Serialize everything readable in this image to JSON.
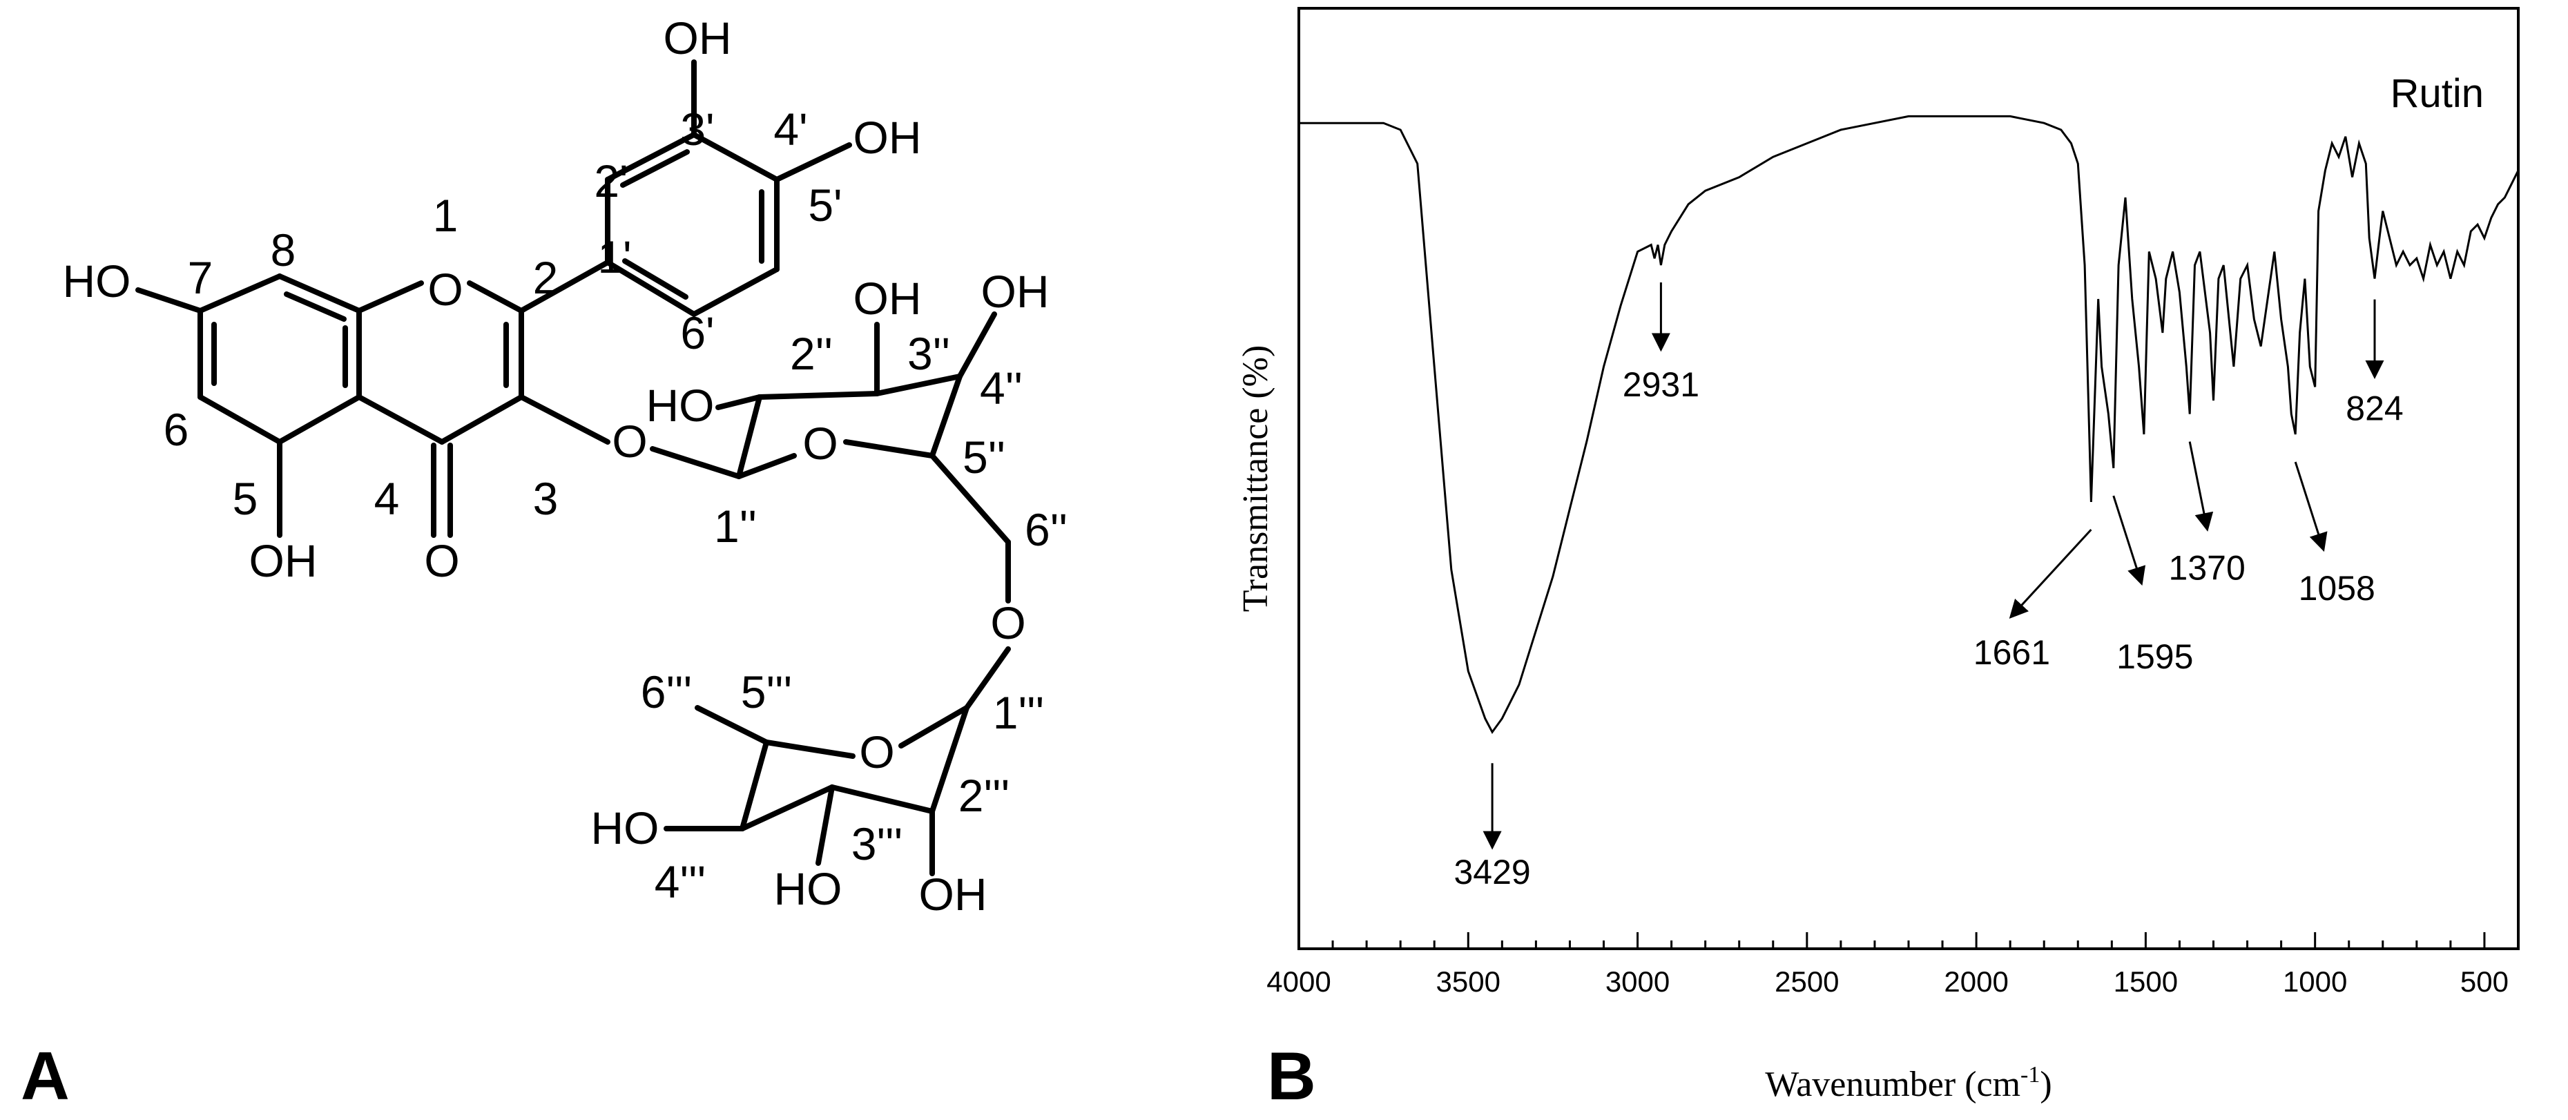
{
  "panels": {
    "a": "A",
    "b": "B"
  },
  "structure": {
    "atoms": {
      "o1": "O",
      "o4": "O",
      "oh_3p": "OH",
      "oh_4p": "OH",
      "oh_7": "HO",
      "oh_5": "OH",
      "o_3": "O",
      "o_ring1": "O",
      "o_ring2": "O",
      "o_6dd": "O",
      "oh_2dd": "HO",
      "oh_3dd": "OH",
      "oh_4dd": "OH",
      "oh_4ddd": "HO",
      "oh_3ddd": "HO",
      "oh_2ddd": "OH"
    },
    "numbering": {
      "n1": "1",
      "n2": "2",
      "n3": "3",
      "n4": "4",
      "n5": "5",
      "n6": "6",
      "n7": "7",
      "n8": "8",
      "n1p": "1'",
      "n2p": "2'",
      "n3p": "3'",
      "n4p": "4'",
      "n5p": "5'",
      "n6p": "6'",
      "n1dd": "1''",
      "n2dd": "2''",
      "n3dd": "3''",
      "n4dd": "4''",
      "n5dd": "5''",
      "n6dd": "6''",
      "n1ddd": "1'''",
      "n2ddd": "2'''",
      "n3ddd": "3'''",
      "n4ddd": "4'''",
      "n5ddd": "5'''",
      "n6ddd": "6'''"
    }
  },
  "chart_data": {
    "type": "line",
    "title": "",
    "xlabel": "Wavenumber (cm-1)",
    "xlabel_parts": {
      "main": "Wavenumber (cm",
      "sup": "-1",
      "close": ")"
    },
    "ylabel": "Transmittance (%)",
    "xlim": [
      4000,
      400
    ],
    "x_reversed": true,
    "y_tick_labels": false,
    "x_ticks": [
      "4000",
      "3500",
      "3000",
      "2500",
      "2000",
      "1500",
      "1000",
      "500"
    ],
    "legend": "none",
    "grid": false,
    "series": [
      {
        "name": "Rutin",
        "x": [
          4000,
          3850,
          3750,
          3700,
          3650,
          3600,
          3550,
          3500,
          3450,
          3429,
          3400,
          3350,
          3300,
          3250,
          3200,
          3150,
          3100,
          3050,
          3000,
          2960,
          2950,
          2940,
          2931,
          2920,
          2900,
          2850,
          2800,
          2700,
          2600,
          2500,
          2400,
          2300,
          2200,
          2100,
          2000,
          1900,
          1800,
          1750,
          1720,
          1700,
          1680,
          1661,
          1640,
          1630,
          1610,
          1595,
          1580,
          1560,
          1540,
          1520,
          1505,
          1490,
          1470,
          1450,
          1440,
          1420,
          1400,
          1380,
          1370,
          1355,
          1340,
          1310,
          1300,
          1285,
          1270,
          1250,
          1240,
          1220,
          1200,
          1180,
          1160,
          1140,
          1120,
          1100,
          1080,
          1070,
          1058,
          1045,
          1030,
          1015,
          1000,
          990,
          970,
          950,
          930,
          910,
          890,
          870,
          850,
          840,
          824,
          810,
          800,
          780,
          760,
          740,
          720,
          700,
          680,
          660,
          640,
          620,
          600,
          580,
          560,
          540,
          520,
          500,
          480,
          460,
          440,
          420,
          400
        ],
        "y": [
          91,
          91,
          91,
          90,
          85,
          55,
          25,
          10,
          3,
          1,
          3,
          8,
          16,
          24,
          34,
          44,
          55,
          64,
          72,
          73,
          71,
          73,
          70,
          73,
          75,
          79,
          81,
          83,
          86,
          88,
          90,
          91,
          92,
          92,
          92,
          92,
          91,
          90,
          88,
          85,
          70,
          35,
          65,
          55,
          48,
          40,
          70,
          80,
          65,
          55,
          45,
          72,
          68,
          60,
          68,
          72,
          66,
          55,
          48,
          70,
          72,
          60,
          50,
          68,
          70,
          60,
          55,
          68,
          70,
          62,
          58,
          65,
          72,
          62,
          55,
          48,
          45,
          60,
          68,
          55,
          52,
          78,
          84,
          88,
          86,
          89,
          83,
          88,
          85,
          74,
          68,
          74,
          78,
          74,
          70,
          72,
          70,
          71,
          68,
          73,
          70,
          72,
          68,
          72,
          70,
          75,
          76,
          74,
          77,
          79,
          80,
          82,
          84
        ]
      }
    ],
    "annotations": [
      {
        "text": "3429",
        "x": 3429
      },
      {
        "text": "2931",
        "x": 2931
      },
      {
        "text": "1661",
        "x": 1661
      },
      {
        "text": "1595",
        "x": 1595
      },
      {
        "text": "1370",
        "x": 1370
      },
      {
        "text": "1058",
        "x": 1058
      },
      {
        "text": "824",
        "x": 824
      }
    ]
  }
}
